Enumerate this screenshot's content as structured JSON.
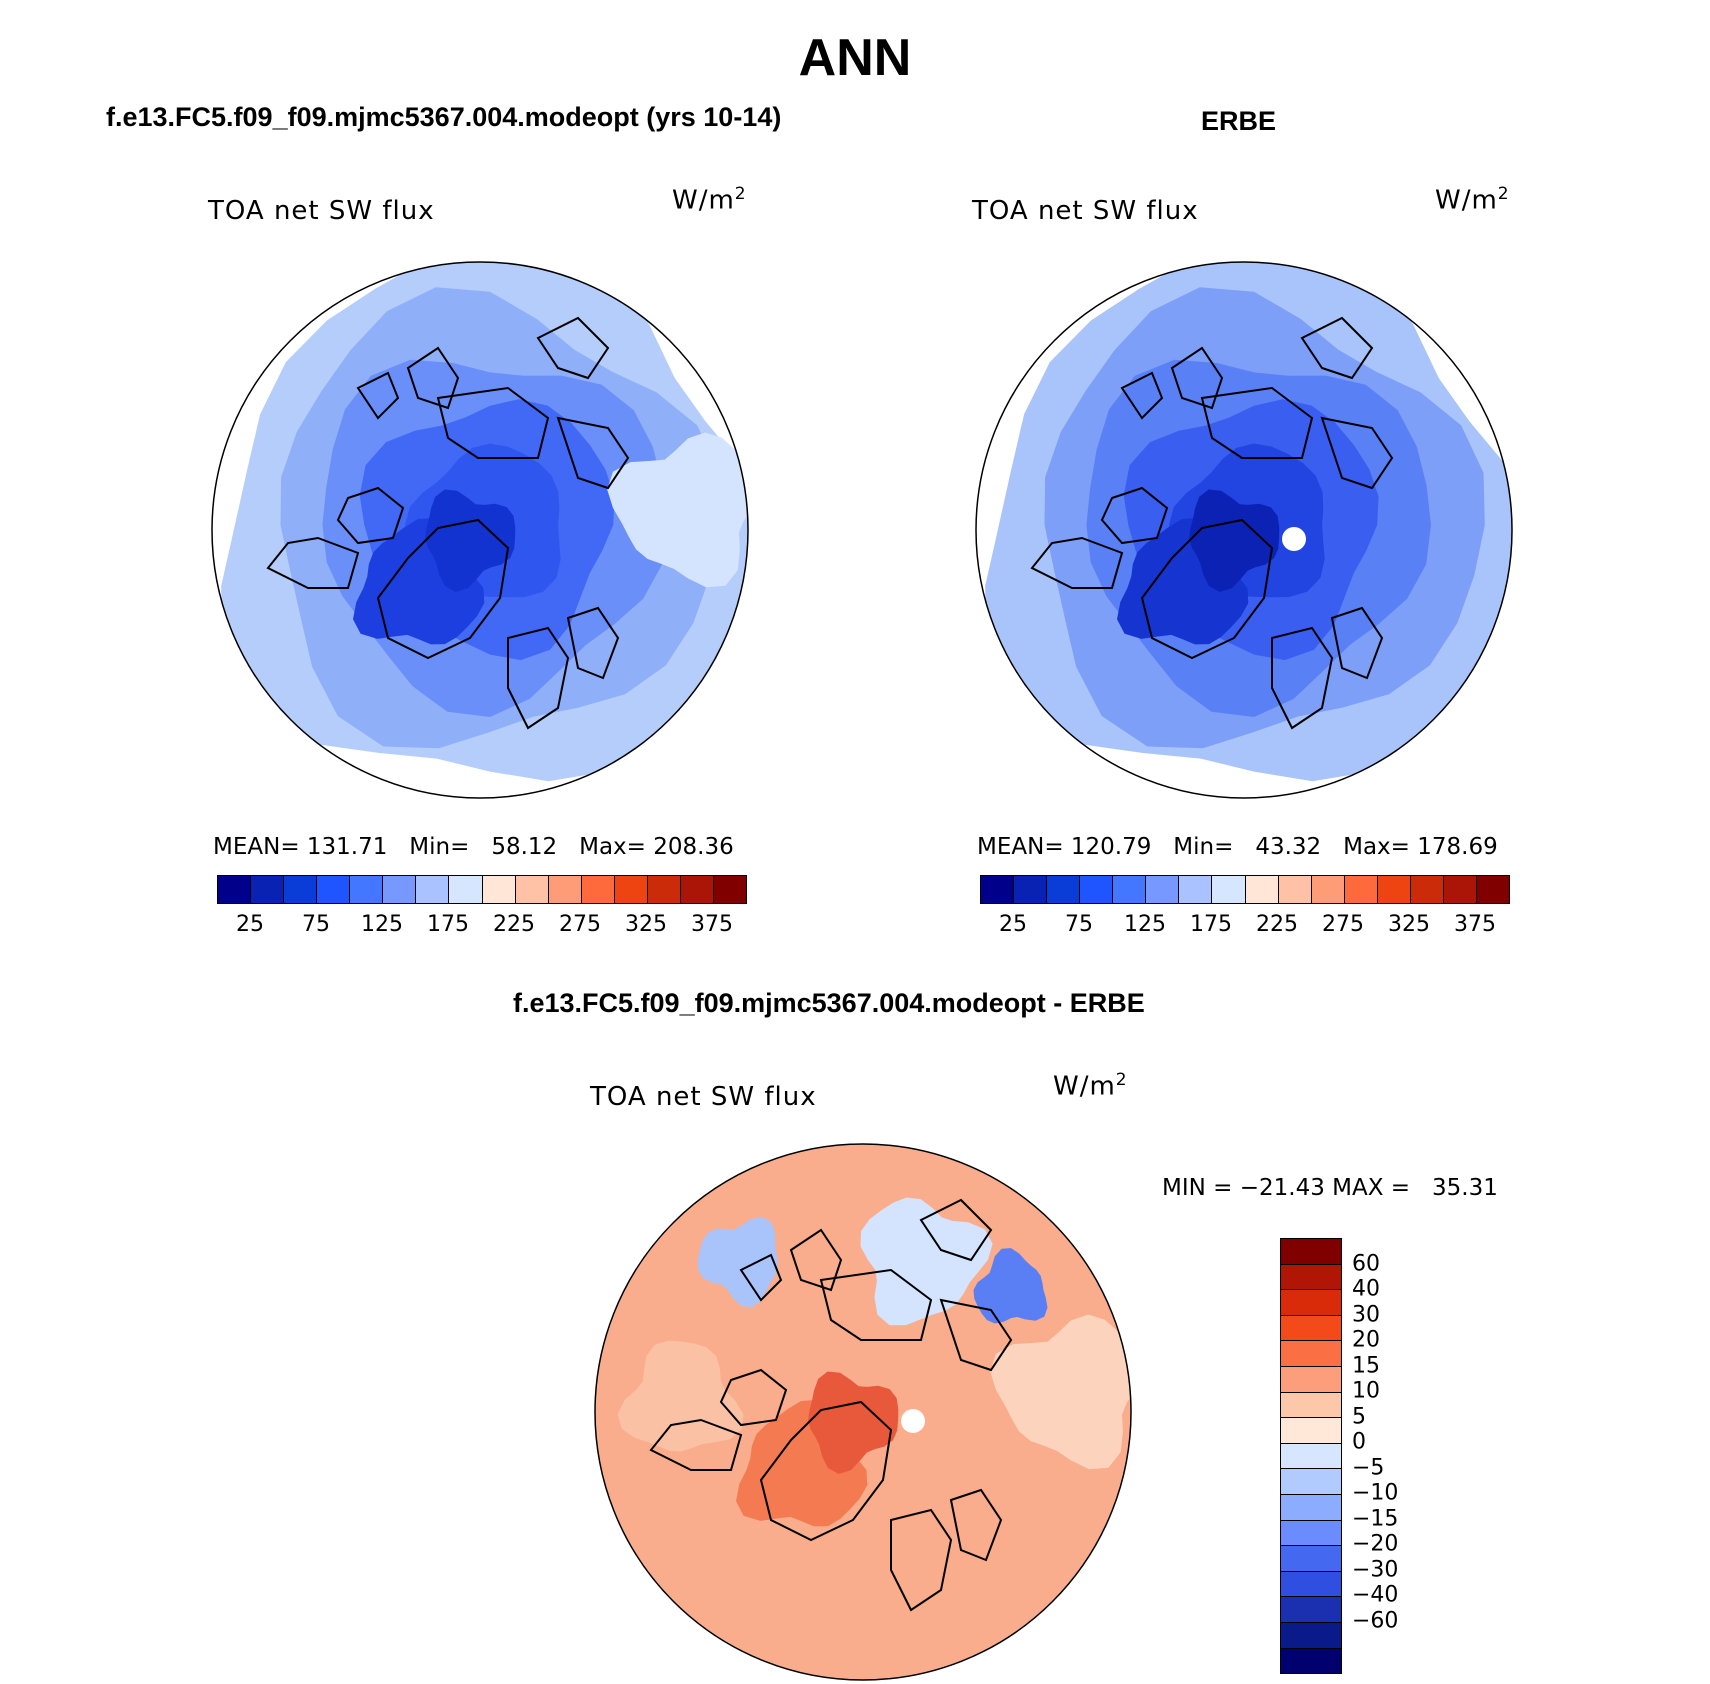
{
  "main_title": "ANN",
  "panels": {
    "model": {
      "case_title": "f.e13.FC5.f09_f09.mjmc5367.004.modeopt (yrs 10-14)",
      "field": "TOA net SW flux",
      "unit_base": "W/m",
      "unit_exp": "2",
      "stats": "MEAN= 131.71   Min=   58.12   Max= 208.36"
    },
    "obs": {
      "case_title": "ERBE",
      "field": "TOA net SW flux",
      "unit_base": "W/m",
      "unit_exp": "2",
      "stats": "MEAN= 120.79   Min=   43.32   Max= 178.69"
    },
    "diff": {
      "case_title": "f.e13.FC5.f09_f09.mjmc5367.004.modeopt - ERBE",
      "field": "TOA net SW flux",
      "unit_base": "W/m",
      "unit_exp": "2",
      "stats": "MIN = −21.43 MAX =   35.31"
    }
  },
  "abs_colorbar": {
    "colors": [
      "#00008b",
      "#0a22b4",
      "#0a3cd8",
      "#1e55ff",
      "#4477ff",
      "#7799ff",
      "#aac2ff",
      "#d6e6ff",
      "#ffe6d6",
      "#ffc2a6",
      "#ff9c78",
      "#ff6a3c",
      "#ee4412",
      "#cc2b0a",
      "#aa1508",
      "#800000"
    ],
    "labels": [
      "25",
      "75",
      "125",
      "175",
      "225",
      "275",
      "325",
      "375"
    ]
  },
  "diff_colorbar": {
    "colors": [
      "#800000",
      "#b01505",
      "#d92b0a",
      "#f44a1a",
      "#fa7044",
      "#fc9e7c",
      "#fdc7aa",
      "#ffe8d8",
      "#d6e6ff",
      "#b2cbff",
      "#8cadff",
      "#6a8cff",
      "#4469f0",
      "#2f4fe0",
      "#1a30b0",
      "#0a1a8a",
      "#00006e"
    ],
    "labels": [
      "60",
      "40",
      "30",
      "20",
      "15",
      "10",
      "5",
      "0",
      "−5",
      "−10",
      "−15",
      "−20",
      "−30",
      "−40",
      "−60"
    ]
  },
  "map_fields": {
    "model": {
      "rings": [
        {
          "value": 160,
          "color": "#b5cdfb"
        },
        {
          "value": 140,
          "color": "#8faff9"
        },
        {
          "value": 115,
          "color": "#6b8ff8"
        },
        {
          "value": 95,
          "color": "#4169f6"
        },
        {
          "value": 80,
          "color": "#2f57f0"
        }
      ],
      "blobs": [
        {
          "value": 70,
          "color": "#1e3fe0"
        },
        {
          "value": 60,
          "color": "#1233cf"
        },
        {
          "value": 175,
          "color": "#d4e3fe"
        }
      ]
    },
    "obs": {
      "rings": [
        {
          "value": 155,
          "color": "#a9c4fb"
        },
        {
          "value": 130,
          "color": "#7d9ff8"
        },
        {
          "value": 110,
          "color": "#5a80f5"
        },
        {
          "value": 90,
          "color": "#3a5ff0"
        },
        {
          "value": 70,
          "color": "#2244e0"
        }
      ],
      "blobs": [
        {
          "value": 55,
          "color": "#1534d0"
        },
        {
          "value": 45,
          "color": "#0b22b5"
        }
      ]
    },
    "diff": {
      "base": {
        "value": 12,
        "color": "#f9ad8c"
      },
      "blobs": [
        {
          "value": 20,
          "color": "#f47a52"
        },
        {
          "value": 28,
          "color": "#e8583a"
        },
        {
          "value": 5,
          "color": "#fcd4bd"
        },
        {
          "value": 8,
          "color": "#fbc1a4"
        },
        {
          "value": -5,
          "color": "#d4e3fe"
        },
        {
          "value": -12,
          "color": "#a9c3fb"
        },
        {
          "value": -20,
          "color": "#5a7ff5"
        }
      ]
    }
  }
}
